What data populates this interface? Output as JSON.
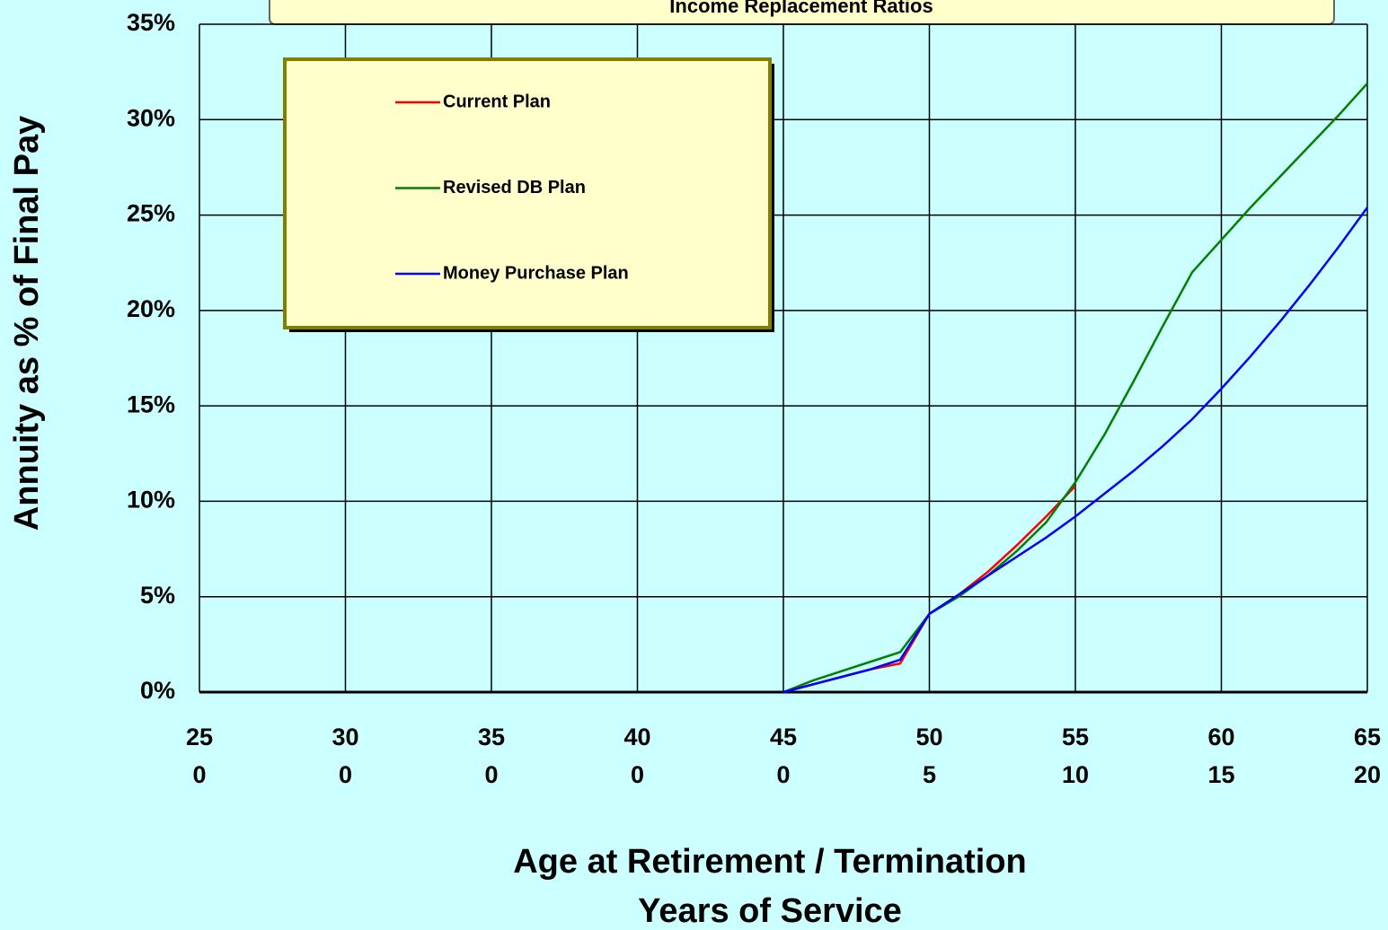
{
  "chart_data": {
    "type": "line",
    "title": "Income Replacement Ratios",
    "ylabel": "Annuity as % of Final Pay",
    "xlabel": "Age at Retirement / Termination",
    "xlabel2": "Years of Service",
    "x": [
      45,
      46,
      47,
      48,
      49,
      50,
      51,
      52,
      53,
      54,
      55,
      56,
      57,
      58,
      59,
      60,
      61,
      62,
      63,
      64,
      65
    ],
    "series": [
      {
        "name": "Current Plan",
        "color": "#ff0000",
        "values": [
          0,
          0.4,
          0.8,
          1.2,
          1.5,
          4.1,
          5.1,
          6.3,
          7.7,
          9.2,
          10.8,
          null,
          null,
          null,
          null,
          null,
          null,
          null,
          null,
          null,
          null
        ]
      },
      {
        "name": "Revised DB Plan",
        "color": "#008000",
        "values": [
          0,
          0.6,
          1.1,
          1.6,
          2.1,
          4.1,
          5.0,
          6.1,
          7.4,
          8.9,
          11.0,
          13.5,
          16.3,
          19.2,
          22.0,
          23.7,
          25.4,
          27.0,
          28.6,
          30.2,
          31.9
        ]
      },
      {
        "name": "Money Purchase Plan",
        "color": "#0000ff",
        "values": [
          0,
          0.4,
          0.8,
          1.2,
          1.7,
          4.1,
          5.1,
          6.1,
          7.1,
          8.1,
          9.2,
          10.4,
          11.6,
          12.9,
          14.3,
          15.9,
          17.6,
          19.4,
          21.3,
          23.3,
          25.4
        ]
      }
    ],
    "xlim": [
      25,
      65
    ],
    "xticks": [
      25,
      30,
      35,
      40,
      45,
      50,
      55,
      60,
      65
    ],
    "service_ticks": [
      0,
      0,
      0,
      0,
      0,
      5,
      10,
      15,
      20
    ],
    "ylim": [
      0,
      35
    ],
    "yticks": [
      {
        "value": 0,
        "label": "0%"
      },
      {
        "value": 5,
        "label": "5%"
      },
      {
        "value": 10,
        "label": "10%"
      },
      {
        "value": 15,
        "label": "15%"
      },
      {
        "value": 20,
        "label": "20%"
      },
      {
        "value": 25,
        "label": "25%"
      },
      {
        "value": 30,
        "label": "30%"
      },
      {
        "value": 35,
        "label": "35%"
      }
    ],
    "grid": true
  }
}
